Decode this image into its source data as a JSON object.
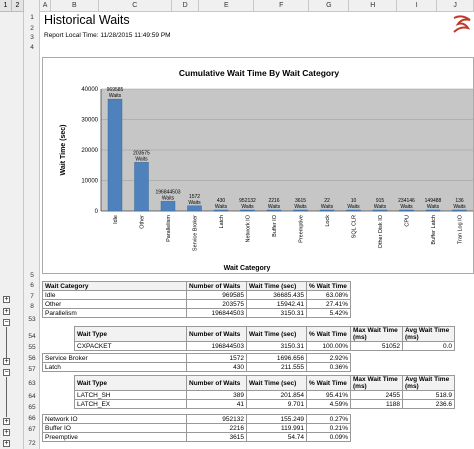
{
  "outline_levels": [
    "1",
    "2"
  ],
  "columns": [
    "A",
    "B",
    "C",
    "D",
    "E",
    "F",
    "G",
    "H",
    "I",
    "J"
  ],
  "title": "Historical Waits",
  "subtitle": "Report Local Time: 11/28/2015 11:49:59 PM",
  "row_numbers": {
    "r1": "1",
    "r2": "2",
    "r3": "3",
    "r4": "4",
    "r5": "5",
    "r6": "6",
    "r7": "7",
    "r8": "8",
    "r53": "53",
    "r54": "54",
    "r55": "55",
    "r56": "56",
    "r57": "57",
    "r63": "63",
    "r64": "64",
    "r65": "65",
    "r66": "66",
    "r67": "67",
    "r70": "70",
    "r71": "71",
    "r72": "72"
  },
  "chart_data": {
    "type": "bar",
    "title": "Cumulative Wait Time By Wait Category",
    "xlabel": "Wait Category",
    "ylabel": "Wait Time (sec)",
    "ylim": [
      0,
      40000
    ],
    "yticks": [
      "0",
      "10000",
      "20000",
      "30000",
      "40000"
    ],
    "categories": [
      "Idle",
      "Other",
      "Parallelism",
      "Service Broker",
      "Latch",
      "Network IO",
      "Buffer IO",
      "Preemptive",
      "Lock",
      "SQL CLR",
      "Other Disk IO",
      "CPU",
      "Buffer Latch",
      "Tran Log IO"
    ],
    "values": [
      36685.435,
      15942.41,
      3150.31,
      1696.656,
      211.555,
      155.249,
      120,
      54.74,
      20,
      5,
      4,
      3,
      2,
      1
    ],
    "labels": [
      "969585\nWaits",
      "203575\nWaits",
      "196844503\nWaits",
      "1572\nWaits",
      "430\nWaits",
      "952132\nWaits",
      "2216\nWaits",
      "3615\nWaits",
      "22\nWaits",
      "10\nWaits",
      "915\nWaits",
      "234146\nWaits",
      "149488\nWaits",
      "136\nWaits"
    ],
    "bar_color": "#4f81bd",
    "grid": true
  },
  "main_table": {
    "headers": [
      "Wait Category",
      "Number of Waits",
      "Wait Time (sec)",
      "% Wait Time"
    ],
    "rows": [
      {
        "cat": "Idle",
        "waits": "969585",
        "time": "36685.435",
        "pct": "63.08%"
      },
      {
        "cat": "Other",
        "waits": "203575",
        "time": "15942.41",
        "pct": "27.41%"
      },
      {
        "cat": "Parallelism",
        "waits": "196844503",
        "time": "3150.31",
        "pct": "5.42%"
      }
    ]
  },
  "parallelism_detail": {
    "headers": [
      "Wait Type",
      "Number of Waits",
      "Wait Time (sec)",
      "% Wait Time",
      "Max Wait Time (ms)",
      "Avg Wait Time (ms)"
    ],
    "rows": [
      {
        "type": "CXPACKET",
        "waits": "196844503",
        "time": "3150.31",
        "pct": "100.00%",
        "max": "51052",
        "avg": "0.0"
      }
    ]
  },
  "mid_rows": [
    {
      "cat": "Service Broker",
      "waits": "1572",
      "time": "1696.656",
      "pct": "2.92%"
    },
    {
      "cat": "Latch",
      "waits": "430",
      "time": "211.555",
      "pct": "0.36%"
    }
  ],
  "latch_detail": {
    "headers": [
      "Wait Type",
      "Number of Waits",
      "Wait Time (sec)",
      "% Wait Time",
      "Max Wait Time (ms)",
      "Avg Wait Time (ms)"
    ],
    "rows": [
      {
        "type": "LATCH_SH",
        "waits": "389",
        "time": "201.854",
        "pct": "95.41%",
        "max": "2455",
        "avg": "518.9"
      },
      {
        "type": "LATCH_EX",
        "waits": "41",
        "time": "9.701",
        "pct": "4.59%",
        "max": "1188",
        "avg": "236.6"
      }
    ]
  },
  "bottom_rows": [
    {
      "cat": "Network IO",
      "waits": "952132",
      "time": "155.249",
      "pct": "0.27%"
    },
    {
      "cat": "Buffer IO",
      "waits": "2216",
      "time": "119.991",
      "pct": "0.21%"
    },
    {
      "cat": "Preemptive",
      "waits": "3615",
      "time": "54.74",
      "pct": "0.09%"
    }
  ],
  "outline_controls": {
    "plus": "+",
    "minus": "−"
  }
}
